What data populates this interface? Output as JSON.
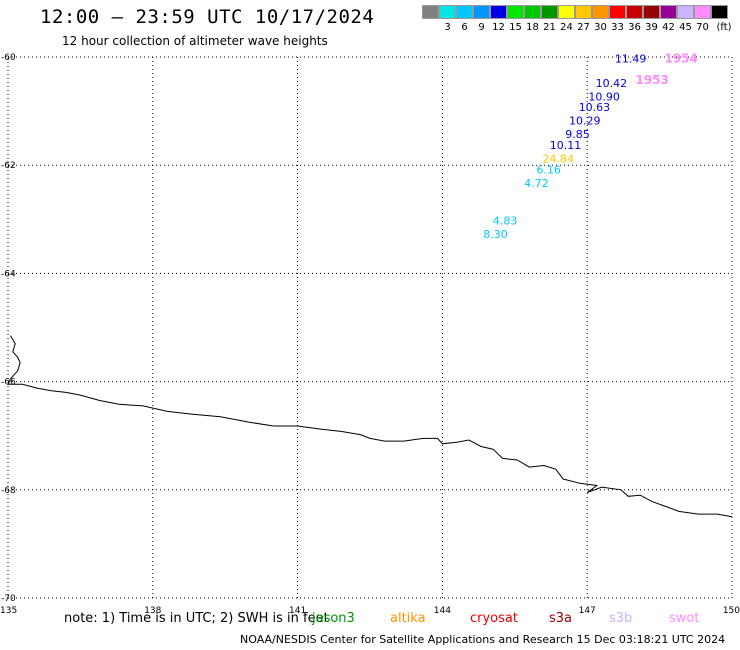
{
  "header": {
    "title": "12:00 — 23:59 UTC 10/17/2024",
    "subtitle": "12 hour collection of altimeter wave heights"
  },
  "legend": {
    "unit_label": "(ft)",
    "bins": [
      {
        "label": "",
        "color": "#808080"
      },
      {
        "label": "3",
        "color": "#00e6e6"
      },
      {
        "label": "6",
        "color": "#00c8ff"
      },
      {
        "label": "9",
        "color": "#0096ff"
      },
      {
        "label": "12",
        "color": "#0000e6"
      },
      {
        "label": "15",
        "color": "#00e600"
      },
      {
        "label": "18",
        "color": "#00c800"
      },
      {
        "label": "21",
        "color": "#009600"
      },
      {
        "label": "24",
        "color": "#ffff00"
      },
      {
        "label": "27",
        "color": "#ffc800"
      },
      {
        "label": "30",
        "color": "#ff9600"
      },
      {
        "label": "33",
        "color": "#ff0000"
      },
      {
        "label": "36",
        "color": "#c80000"
      },
      {
        "label": "39",
        "color": "#960000"
      },
      {
        "label": "42",
        "color": "#960096"
      },
      {
        "label": "45",
        "color": "#c8b4ff"
      },
      {
        "label": "70",
        "color": "#ff8cff"
      },
      {
        "label": "",
        "color": "#000000"
      }
    ]
  },
  "map": {
    "x_range": [
      135,
      150
    ],
    "y_range": [
      -70,
      -60
    ],
    "x_ticks": [
      "135",
      "138",
      "141",
      "144",
      "147",
      "150"
    ],
    "y_ticks": [
      "-60",
      "-62",
      "-64",
      "-66",
      "-68",
      "-70"
    ],
    "x_tick_values": [
      135,
      138,
      141,
      144,
      147,
      150
    ],
    "y_tick_values": [
      -60,
      -62,
      -64,
      -66,
      -68,
      -70
    ],
    "grid": "dotted",
    "track_times": [
      {
        "label": "1954",
        "lon": 148.6,
        "lat": -60.1,
        "color": "#ff8cff"
      },
      {
        "label": "1953",
        "lon": 148.0,
        "lat": -60.5,
        "color": "#ff8cff"
      }
    ],
    "observations": [
      {
        "label": "11.49",
        "lon": 147.9,
        "lat": -60.1,
        "color": "#0000e6"
      },
      {
        "label": "10.42",
        "lon": 147.5,
        "lat": -60.55,
        "color": "#0000e6"
      },
      {
        "label": "10.90",
        "lon": 147.35,
        "lat": -60.8,
        "color": "#0000e6"
      },
      {
        "label": "10.63",
        "lon": 147.15,
        "lat": -61.0,
        "color": "#0000e6"
      },
      {
        "label": "10.29",
        "lon": 146.95,
        "lat": -61.25,
        "color": "#0000e6"
      },
      {
        "label": "9.85",
        "lon": 146.8,
        "lat": -61.5,
        "color": "#0000e6"
      },
      {
        "label": "10.11",
        "lon": 146.55,
        "lat": -61.7,
        "color": "#0000e6"
      },
      {
        "label": "24.84",
        "lon": 146.4,
        "lat": -61.95,
        "color": "#ffc800"
      },
      {
        "label": "6.16",
        "lon": 146.2,
        "lat": -62.15,
        "color": "#00c8ff"
      },
      {
        "label": "4.72",
        "lon": 145.95,
        "lat": -62.4,
        "color": "#00c8ff"
      },
      {
        "label": "4.83",
        "lon": 145.3,
        "lat": -63.1,
        "color": "#00c8ff"
      },
      {
        "label": "8.30",
        "lon": 145.1,
        "lat": -63.35,
        "color": "#00c8ff"
      }
    ],
    "coastline": [
      [
        135.05,
        -65.15
      ],
      [
        135.15,
        -65.3
      ],
      [
        135.1,
        -65.45
      ],
      [
        135.2,
        -65.55
      ],
      [
        135.25,
        -65.65
      ],
      [
        135.2,
        -65.8
      ],
      [
        135.05,
        -65.95
      ],
      [
        135.0,
        -66.05
      ],
      [
        135.3,
        -66.05
      ],
      [
        135.6,
        -66.12
      ],
      [
        135.9,
        -66.17
      ],
      [
        136.2,
        -66.2
      ],
      [
        136.5,
        -66.25
      ],
      [
        136.9,
        -66.35
      ],
      [
        137.3,
        -66.42
      ],
      [
        137.8,
        -66.45
      ],
      [
        138.3,
        -66.55
      ],
      [
        138.8,
        -66.6
      ],
      [
        139.4,
        -66.65
      ],
      [
        140.0,
        -66.75
      ],
      [
        140.5,
        -66.82
      ],
      [
        141.0,
        -66.82
      ],
      [
        141.5,
        -66.88
      ],
      [
        141.9,
        -66.92
      ],
      [
        142.3,
        -66.98
      ],
      [
        142.5,
        -67.05
      ],
      [
        142.8,
        -67.1
      ],
      [
        143.2,
        -67.1
      ],
      [
        143.6,
        -67.05
      ],
      [
        143.9,
        -67.05
      ],
      [
        144.0,
        -67.15
      ],
      [
        144.3,
        -67.12
      ],
      [
        144.55,
        -67.08
      ],
      [
        144.8,
        -67.2
      ],
      [
        145.05,
        -67.25
      ],
      [
        145.25,
        -67.42
      ],
      [
        145.55,
        -67.45
      ],
      [
        145.8,
        -67.58
      ],
      [
        146.1,
        -67.55
      ],
      [
        146.35,
        -67.62
      ],
      [
        146.5,
        -67.8
      ],
      [
        146.85,
        -67.88
      ],
      [
        147.2,
        -67.92
      ],
      [
        147.0,
        -68.05
      ],
      [
        147.3,
        -67.95
      ],
      [
        147.7,
        -68.0
      ],
      [
        147.85,
        -68.12
      ],
      [
        148.1,
        -68.1
      ],
      [
        148.35,
        -68.22
      ],
      [
        148.6,
        -68.3
      ],
      [
        148.9,
        -68.4
      ],
      [
        149.3,
        -68.45
      ],
      [
        149.7,
        -68.45
      ],
      [
        150.0,
        -68.5
      ]
    ]
  },
  "footer": {
    "note": "note: 1) Time is in UTC; 2) SWH is in feet",
    "missions": [
      {
        "label": "jason3",
        "color": "#009600"
      },
      {
        "label": "altika",
        "color": "#ff9600"
      },
      {
        "label": "cryosat",
        "color": "#e60000"
      },
      {
        "label": "s3a",
        "color": "#960000"
      },
      {
        "label": "s3b",
        "color": "#c8b4ff"
      },
      {
        "label": "swot",
        "color": "#ff8cff"
      }
    ],
    "credit": "NOAA/NESDIS Center for Satellite Applications and Research   15 Dec 03:18:21 UTC 2024"
  }
}
